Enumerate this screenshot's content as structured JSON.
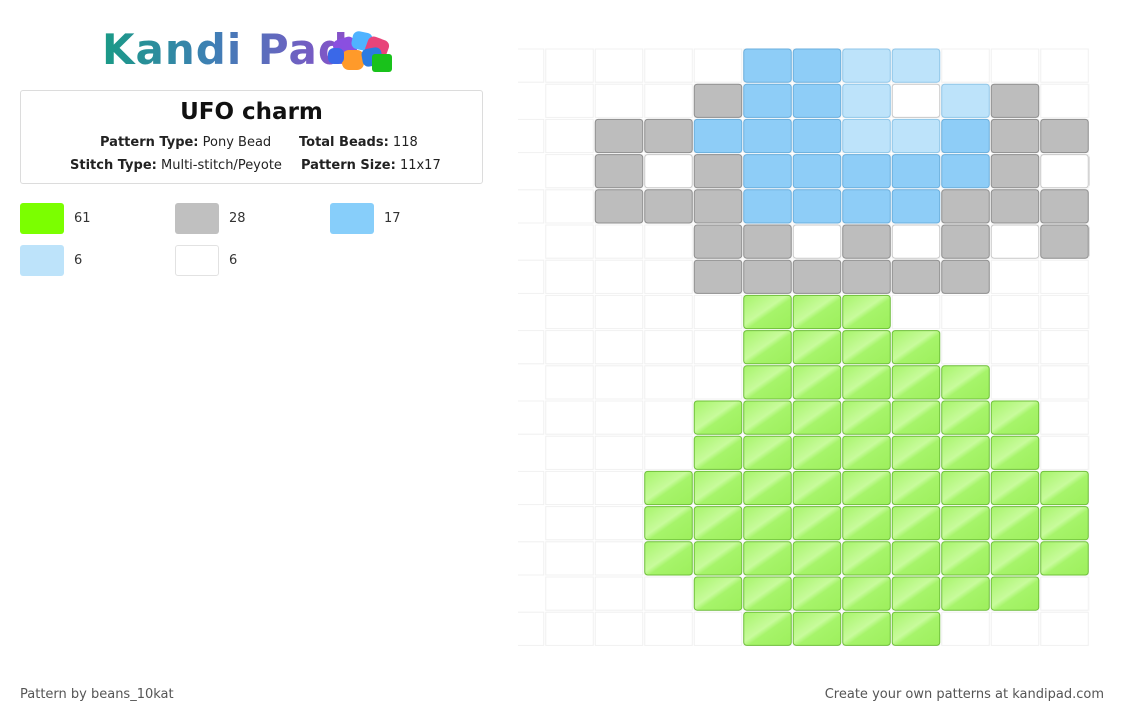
{
  "logo": {
    "text": "Kandi Pad"
  },
  "pattern": {
    "title": "UFO charm",
    "type_label": "Pattern Type:",
    "type_value": "Pony Bead",
    "beads_label": "Total Beads:",
    "beads_value": "118",
    "stitch_label": "Stitch Type:",
    "stitch_value": "Multi-stitch/Peyote",
    "size_label": "Pattern Size:",
    "size_value": "11x17"
  },
  "colors": {
    "green": "#a8f56c",
    "gray": "#bdbdbd",
    "blue": "#8ecdf7",
    "lightblue": "#bde3fa",
    "white": "#ffffff"
  },
  "swatches": [
    {
      "color": "#7bff00",
      "count": "61"
    },
    {
      "color": "#c0c0c0",
      "count": "28"
    },
    {
      "color": "#87cefa",
      "count": "17"
    },
    {
      "color": "#bde3fa",
      "count": "6"
    },
    {
      "color": "#ffffff",
      "count": "6"
    }
  ],
  "grid": {
    "rows": [
      ".....BBLL....",
      "...GBBLWLG..",
      "..GGBBBLLBGG.",
      ".GWGBBBBBGWG",
      "..GGGBBBBGGG.",
      "...GGWGWGWGG",
      "....GGGGGG...",
      "....ggg.....",
      ".....gggg....",
      "....ggggg...",
      "....ggggggg..",
      "...ggggggg..",
      "...ggggggggg.",
      "..ggggggggg.",
      "...ggggggggg.",
      "...ggggggg..",
      ".....gggg...."
    ]
  },
  "footer": {
    "left": "Pattern by beans_10kat",
    "right": "Create your own patterns at kandipad.com"
  }
}
